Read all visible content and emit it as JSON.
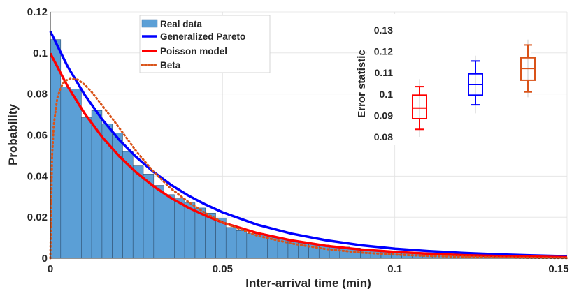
{
  "chart_data": [
    {
      "type": "bar",
      "title": "",
      "xlabel": "Inter-arrival time (min)",
      "ylabel": "Probability",
      "xlim": [
        0,
        0.15
      ],
      "ylim": [
        0,
        0.12
      ],
      "xticks": [
        0,
        0.05,
        0.1,
        0.15
      ],
      "xtick_labels": [
        "0",
        "0.05",
        "0.1",
        "0.15"
      ],
      "yticks": [
        0,
        0.02,
        0.04,
        0.06,
        0.08,
        0.1,
        0.12
      ],
      "ytick_labels": [
        "0",
        "0.02",
        "0.04",
        "0.06",
        "0.08",
        "0.1",
        "0.12"
      ],
      "grid": true,
      "legend_position": "top-center",
      "histogram": {
        "name": "Real data",
        "bin_width": 0.003,
        "bin_starts": [
          0,
          0.003,
          0.006,
          0.009,
          0.012,
          0.015,
          0.018,
          0.021,
          0.024,
          0.027,
          0.03,
          0.033,
          0.036,
          0.039,
          0.042,
          0.045,
          0.048,
          0.051,
          0.054,
          0.057,
          0.06,
          0.063,
          0.066,
          0.069,
          0.072,
          0.075,
          0.078,
          0.081,
          0.084,
          0.087,
          0.09,
          0.093,
          0.096,
          0.099,
          0.102,
          0.105,
          0.108,
          0.111,
          0.114,
          0.117,
          0.12,
          0.123,
          0.126,
          0.129,
          0.132,
          0.135,
          0.138,
          0.141,
          0.144,
          0.147
        ],
        "values": [
          0.1065,
          0.0835,
          0.0825,
          0.0685,
          0.072,
          0.0655,
          0.061,
          0.052,
          0.045,
          0.041,
          0.0355,
          0.031,
          0.029,
          0.027,
          0.0245,
          0.022,
          0.0195,
          0.015,
          0.0135,
          0.012,
          0.0115,
          0.01,
          0.0095,
          0.0085,
          0.0075,
          0.007,
          0.0065,
          0.006,
          0.0055,
          0.005,
          0.0045,
          0.004,
          0.0035,
          0.0032,
          0.003,
          0.0028,
          0.0025,
          0.0022,
          0.002,
          0.0018,
          0.0016,
          0.0014,
          0.0012,
          0.0011,
          0.001,
          0.0009,
          0.0008,
          0.0007,
          0.0006,
          0.0005
        ],
        "color": "#5B9FD6"
      },
      "curves": [
        {
          "name": "Generalized Pareto",
          "color": "#0000FF",
          "style": "solid",
          "x": [
            0,
            0.005,
            0.01,
            0.015,
            0.02,
            0.025,
            0.03,
            0.035,
            0.04,
            0.045,
            0.05,
            0.06,
            0.07,
            0.08,
            0.09,
            0.1,
            0.11,
            0.12,
            0.13,
            0.14,
            0.15
          ],
          "y": [
            0.1105,
            0.0935,
            0.0795,
            0.0677,
            0.0577,
            0.0492,
            0.042,
            0.0358,
            0.0306,
            0.0262,
            0.0224,
            0.0164,
            0.012,
            0.0088,
            0.0064,
            0.0047,
            0.0035,
            0.0026,
            0.0019,
            0.0014,
            0.001
          ]
        },
        {
          "name": "Poisson model",
          "color": "#FF0000",
          "style": "solid",
          "x": [
            0,
            0.005,
            0.01,
            0.015,
            0.02,
            0.025,
            0.03,
            0.035,
            0.04,
            0.045,
            0.05,
            0.06,
            0.07,
            0.08,
            0.09,
            0.1,
            0.11,
            0.12,
            0.13,
            0.14,
            0.15
          ],
          "y": [
            0.0998,
            0.0838,
            0.0704,
            0.0591,
            0.0497,
            0.0417,
            0.035,
            0.0294,
            0.0247,
            0.0208,
            0.0174,
            0.0123,
            0.0087,
            0.0061,
            0.0043,
            0.0031,
            0.0022,
            0.0015,
            0.0011,
            0.0008,
            0.0005
          ]
        },
        {
          "name": "Beta",
          "color": "#D95319",
          "style": "dotted",
          "x": [
            0,
            0.0005,
            0.001,
            0.002,
            0.003,
            0.004,
            0.005,
            0.006,
            0.008,
            0.01,
            0.012,
            0.015,
            0.018,
            0.02,
            0.025,
            0.03,
            0.035,
            0.04,
            0.045,
            0.05,
            0.06,
            0.07,
            0.08,
            0.09,
            0.1,
            0.11,
            0.12,
            0.13,
            0.14,
            0.15
          ],
          "y": [
            0,
            0.05,
            0.065,
            0.078,
            0.083,
            0.086,
            0.087,
            0.0875,
            0.087,
            0.0845,
            0.081,
            0.0745,
            0.068,
            0.0635,
            0.052,
            0.042,
            0.034,
            0.0275,
            0.022,
            0.0175,
            0.011,
            0.0072,
            0.0045,
            0.0028,
            0.0018,
            0.0011,
            0.0007,
            0.0004,
            0.0002,
            0.0001
          ]
        }
      ],
      "legend": [
        {
          "label": "Real data",
          "kind": "patch",
          "color": "#5B9FD6"
        },
        {
          "label": "Generalized Pareto",
          "kind": "line",
          "color": "#0000FF"
        },
        {
          "label": "Poisson model",
          "kind": "line",
          "color": "#FF0000"
        },
        {
          "label": "Beta",
          "kind": "dotted",
          "color": "#D95319"
        }
      ]
    },
    {
      "type": "box",
      "title": "",
      "xlabel": "",
      "ylabel": "Error statistic",
      "ylim": [
        0.08,
        0.13
      ],
      "yticks": [
        0.08,
        0.09,
        0.1,
        0.11,
        0.12,
        0.13
      ],
      "ytick_labels": [
        "0.08",
        "0.09",
        "0.1",
        "0.11",
        "0.12",
        "0.13"
      ],
      "boxes": [
        {
          "name": "Poisson model",
          "color": "#FF0000",
          "min": 0.0835,
          "q1": 0.0885,
          "median": 0.0935,
          "q3": 0.0995,
          "max": 0.1035
        },
        {
          "name": "Generalized Pareto",
          "color": "#0000FF",
          "min": 0.095,
          "q1": 0.0995,
          "median": 0.1045,
          "q3": 0.1095,
          "max": 0.1155
        },
        {
          "name": "Beta",
          "color": "#D95319",
          "min": 0.101,
          "q1": 0.1065,
          "median": 0.112,
          "q3": 0.117,
          "max": 0.123
        }
      ]
    }
  ]
}
